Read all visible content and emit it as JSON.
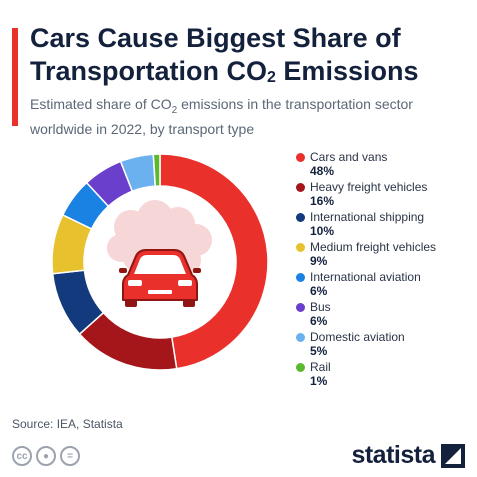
{
  "header": {
    "title_main": "Cars Cause Biggest Share of Transportation CO",
    "title_sub": "2",
    "title_end": " Emissions",
    "subtitle_pre": "Estimated share of CO",
    "subtitle_sub": "2",
    "subtitle_post": " emissions in the transportation sector worldwide in 2022, by transport type"
  },
  "chart_data": {
    "type": "pie",
    "donut": true,
    "unit": "%",
    "categories": [
      "Cars and vans",
      "Heavy freight vehicles",
      "International shipping",
      "Medium freight vehicles",
      "International aviation",
      "Bus",
      "Domestic aviation",
      "Rail"
    ],
    "values": [
      48,
      16,
      10,
      9,
      6,
      6,
      5,
      1
    ],
    "value_labels": [
      "48%",
      "16%",
      "10%",
      "9%",
      "6%",
      "6%",
      "5%",
      "1%"
    ],
    "colors": [
      "#e9302a",
      "#a5161a",
      "#133a7c",
      "#e8c12e",
      "#1a82e2",
      "#6a3fcb",
      "#6bb0ef",
      "#5cb82e"
    ],
    "legend_position": "right",
    "center_icon": "car-icon",
    "center_icon_background": "cloud"
  },
  "footer": {
    "source": "Source: IEA, Statista",
    "brand": "statista",
    "license_icons": [
      "cc-icon",
      "by-icon",
      "nd-icon"
    ]
  }
}
